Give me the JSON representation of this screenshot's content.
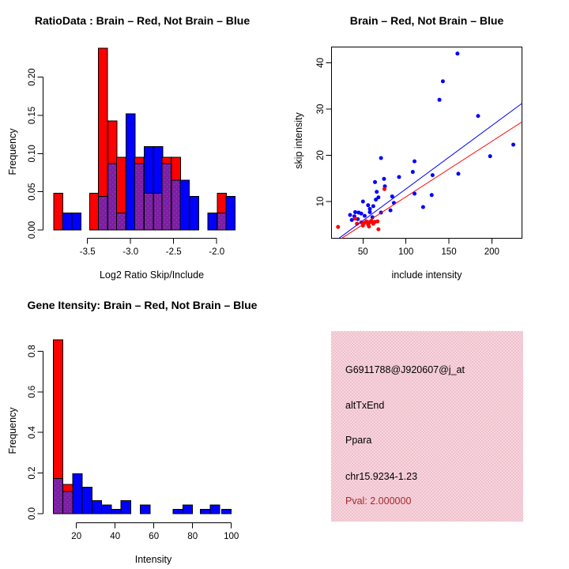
{
  "colors": {
    "red": "#FF0000",
    "blue": "#0000FF",
    "purple_overlap": "#7C1FA2",
    "purple_dot": "#9C44BE",
    "bar_outline": "#000000",
    "axis": "#000000",
    "info_bg": "#EFC2CD",
    "pval_text": "#A52A2A"
  },
  "legend_meaning": {
    "red_series": "Brain",
    "blue_series": "Not Brain"
  },
  "chart_data": [
    {
      "type": "bar",
      "subtype": "overlaid-histogram",
      "title": "RatioData : Brain – Red, Not Brain – Blue",
      "xlabel": "Log2 Ratio Skip/Include",
      "ylabel": "Frequency",
      "xlim": [
        -3.95,
        -1.78
      ],
      "ylim": [
        0,
        0.24
      ],
      "grid": false,
      "xticks": [
        {
          "v": -3.5,
          "t": "-3.5"
        },
        {
          "v": -3.0,
          "t": "-3.0"
        },
        {
          "v": -2.5,
          "t": "-2.5"
        },
        {
          "v": -2.0,
          "t": "-2.0"
        }
      ],
      "yticks": [
        {
          "v": 0,
          "t": "0.00"
        },
        {
          "v": 0.05,
          "t": "0.05"
        },
        {
          "v": 0.1,
          "t": "0.10"
        },
        {
          "v": 0.15,
          "t": "0.15"
        },
        {
          "v": 0.2,
          "t": "0.20"
        }
      ],
      "bin_width": 0.105,
      "series": [
        {
          "name": "Brain",
          "color": "red"
        },
        {
          "name": "Not Brain",
          "color": "blue"
        }
      ],
      "bins": [
        {
          "x": -3.84,
          "r": 0.048,
          "b": 0
        },
        {
          "x": -3.74,
          "r": 0,
          "b": 0.022
        },
        {
          "x": -3.63,
          "r": 0,
          "b": 0.022
        },
        {
          "x": -3.42,
          "r": 0.048,
          "b": 0
        },
        {
          "x": -3.32,
          "r": 0.238,
          "b": 0.044
        },
        {
          "x": -3.21,
          "r": 0.143,
          "b": 0.087
        },
        {
          "x": -3.11,
          "r": 0.095,
          "b": 0.022
        },
        {
          "x": -3.0,
          "r": 0,
          "b": 0.152
        },
        {
          "x": -2.9,
          "r": 0.095,
          "b": 0.087
        },
        {
          "x": -2.79,
          "r": 0.048,
          "b": 0.109
        },
        {
          "x": -2.68,
          "r": 0.048,
          "b": 0.109
        },
        {
          "x": -2.58,
          "r": 0.095,
          "b": 0.087
        },
        {
          "x": -2.47,
          "r": 0.095,
          "b": 0.065
        },
        {
          "x": -2.37,
          "r": 0,
          "b": 0.065
        },
        {
          "x": -2.26,
          "r": 0,
          "b": 0.044
        },
        {
          "x": -2.05,
          "r": 0,
          "b": 0.022
        },
        {
          "x": -1.94,
          "r": 0.048,
          "b": 0.022
        },
        {
          "x": -1.84,
          "r": 0,
          "b": 0.044
        }
      ]
    },
    {
      "type": "scatter",
      "title": "Brain – Red, Not Brain – Blue",
      "xlabel": "include intensity",
      "ylabel": "skip intensity",
      "xlim": [
        13,
        235
      ],
      "ylim": [
        2,
        43.4
      ],
      "grid": false,
      "xticks": [
        {
          "v": 50,
          "t": "50"
        },
        {
          "v": 100,
          "t": "100"
        },
        {
          "v": 150,
          "t": "150"
        },
        {
          "v": 200,
          "t": "200"
        }
      ],
      "yticks": [
        {
          "v": 10,
          "t": "10"
        },
        {
          "v": 20,
          "t": "20"
        },
        {
          "v": 30,
          "t": "30"
        },
        {
          "v": 40,
          "t": "40"
        }
      ],
      "blue_points": [
        [
          160,
          42
        ],
        [
          143,
          36
        ],
        [
          139,
          32
        ],
        [
          184,
          28.5
        ],
        [
          225,
          22.3
        ],
        [
          198,
          19.8
        ],
        [
          71,
          19.4
        ],
        [
          110,
          18.7
        ],
        [
          108,
          16.4
        ],
        [
          161,
          16
        ],
        [
          131,
          15.7
        ],
        [
          92,
          15.3
        ],
        [
          74.5,
          14.9
        ],
        [
          75.5,
          13.3
        ],
        [
          64,
          14.2
        ],
        [
          66,
          12.1
        ],
        [
          130,
          11.4
        ],
        [
          120,
          8.8
        ],
        [
          110,
          11.7
        ],
        [
          84,
          11.1
        ],
        [
          86,
          9.7
        ],
        [
          68,
          10.9
        ],
        [
          65,
          10.4
        ],
        [
          50,
          10
        ],
        [
          56,
          9.2
        ],
        [
          62,
          9
        ],
        [
          58,
          8.4
        ],
        [
          82,
          8.1
        ],
        [
          48,
          7.4
        ],
        [
          45,
          7.6
        ],
        [
          41,
          7.7
        ],
        [
          40,
          6.8
        ],
        [
          35,
          7.1
        ],
        [
          37,
          6
        ],
        [
          44,
          6.2
        ],
        [
          52,
          6.9
        ],
        [
          58,
          7.7
        ],
        [
          61,
          6.6
        ],
        [
          71,
          7.6
        ]
      ],
      "red_points": [
        [
          21,
          4.5
        ],
        [
          41,
          6.3
        ],
        [
          43,
          5.2
        ],
        [
          48,
          5.5
        ],
        [
          50,
          4.8
        ],
        [
          52,
          5.4
        ],
        [
          54,
          5.7
        ],
        [
          56,
          5
        ],
        [
          58,
          5.5
        ],
        [
          60,
          5.8
        ],
        [
          62,
          5.2
        ],
        [
          64,
          5.6
        ],
        [
          57,
          4.6
        ],
        [
          67,
          5.7
        ],
        [
          68,
          4
        ],
        [
          75,
          12.7
        ]
      ],
      "blue_fit": {
        "x1": 21.7,
        "y1": 2.0,
        "x2": 234.9,
        "y2": 31.2
      },
      "red_fit": {
        "x1": 24.8,
        "y1": 2.0,
        "x2": 234.9,
        "y2": 27.2
      }
    },
    {
      "type": "bar",
      "subtype": "overlaid-histogram",
      "title": "Gene Itensity: Brain – Red, Not Brain – Blue",
      "xlabel": "Intensity",
      "ylabel": "Frequency",
      "xlim": [
        3,
        104
      ],
      "ylim": [
        0,
        0.86
      ],
      "grid": false,
      "xticks": [
        {
          "v": 20,
          "t": "20"
        },
        {
          "v": 40,
          "t": "40"
        },
        {
          "v": 60,
          "t": "60"
        },
        {
          "v": 80,
          "t": "80"
        },
        {
          "v": 100,
          "t": "100"
        }
      ],
      "yticks": [
        {
          "v": 0,
          "t": "0.0"
        },
        {
          "v": 0.2,
          "t": "0.2"
        },
        {
          "v": 0.4,
          "t": "0.4"
        },
        {
          "v": 0.6,
          "t": "0.6"
        },
        {
          "v": 0.8,
          "t": "0.8"
        }
      ],
      "series": [
        {
          "name": "Brain",
          "color": "red"
        },
        {
          "name": "Not Brain",
          "color": "blue"
        }
      ],
      "bins": [
        {
          "x0": 8,
          "x1": 13,
          "r": 0.857,
          "b": 0.174
        },
        {
          "x0": 13,
          "x1": 18,
          "r": 0.143,
          "b": 0.109
        },
        {
          "x0": 18,
          "x1": 23,
          "r": 0,
          "b": 0.196
        },
        {
          "x0": 23,
          "x1": 28,
          "r": 0,
          "b": 0.13
        },
        {
          "x0": 28,
          "x1": 33,
          "r": 0,
          "b": 0.065
        },
        {
          "x0": 33,
          "x1": 38,
          "r": 0,
          "b": 0.043
        },
        {
          "x0": 38,
          "x1": 43,
          "r": 0,
          "b": 0.022
        },
        {
          "x0": 43,
          "x1": 48,
          "r": 0,
          "b": 0.065
        },
        {
          "x0": 53,
          "x1": 58,
          "r": 0,
          "b": 0.043
        },
        {
          "x0": 70,
          "x1": 75,
          "r": 0,
          "b": 0.022
        },
        {
          "x0": 75,
          "x1": 80,
          "r": 0,
          "b": 0.043
        },
        {
          "x0": 84,
          "x1": 89,
          "r": 0,
          "b": 0.022
        },
        {
          "x0": 89,
          "x1": 94,
          "r": 0,
          "b": 0.043
        },
        {
          "x0": 95,
          "x1": 100,
          "r": 0,
          "b": 0.022
        }
      ]
    }
  ],
  "info_panel": {
    "probe_id": "G6911788@J920607@j_at",
    "event_type": "altTxEnd",
    "gene": "Ppara",
    "location": "chr15.9234-1.23",
    "pval": "Pval: 2.000000"
  }
}
